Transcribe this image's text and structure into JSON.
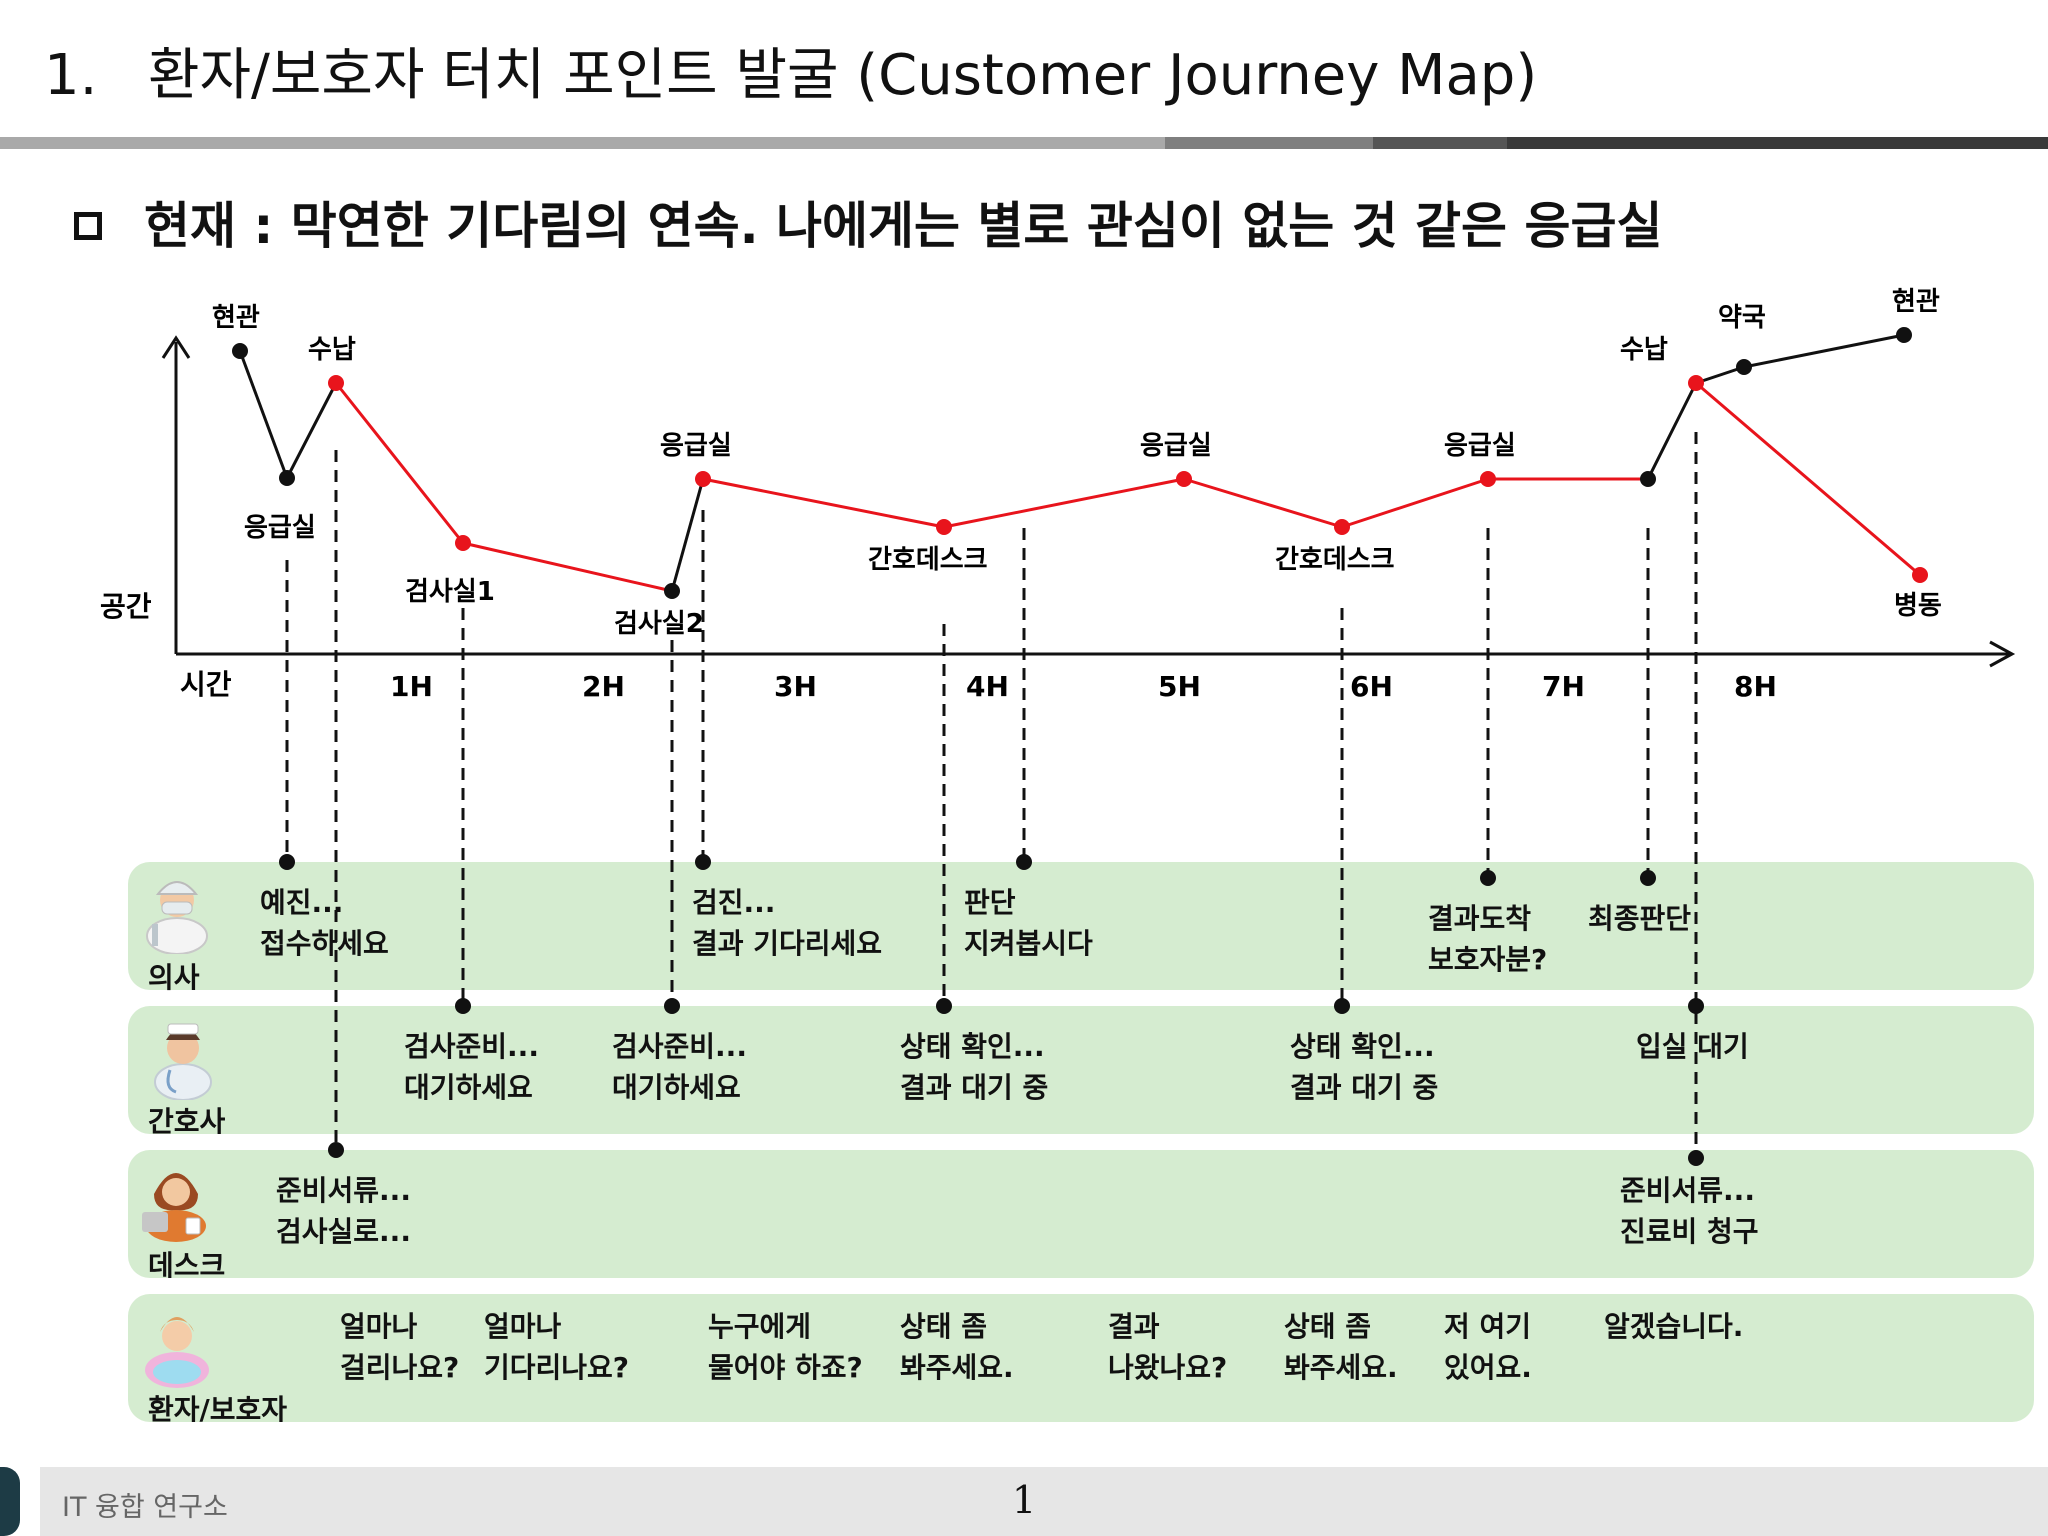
{
  "header": {
    "number": "1.",
    "title": "환자/보호자 터치 포인트 발굴 (Customer Journey Map)",
    "subtitle": "현재 : 막연한 기다림의 연속. 나에게는 별로 관심이 없는 것 같은 응급실"
  },
  "axes": {
    "y_label": "공간",
    "x_label": "시간"
  },
  "hours": [
    "1H",
    "2H",
    "3H",
    "4H",
    "5H",
    "6H",
    "7H",
    "8H"
  ],
  "journey_points": [
    {
      "id": "p0",
      "label": "현관",
      "color": "black"
    },
    {
      "id": "p1",
      "label": "응급실",
      "color": "black"
    },
    {
      "id": "p2",
      "label": "수납",
      "color": "red"
    },
    {
      "id": "p3",
      "label": "검사실1",
      "color": "red"
    },
    {
      "id": "p4",
      "label": "검사실2",
      "color": "black"
    },
    {
      "id": "p5",
      "label": "응급실",
      "color": "red"
    },
    {
      "id": "p6",
      "label": "간호데스크",
      "color": "red"
    },
    {
      "id": "p7",
      "label": "응급실",
      "color": "red"
    },
    {
      "id": "p8",
      "label": "간호데스크",
      "color": "red"
    },
    {
      "id": "p9",
      "label": "응급실",
      "color": "red"
    },
    {
      "id": "p10",
      "label": "",
      "color": "black"
    },
    {
      "id": "p11",
      "label": "수납",
      "color": "red"
    },
    {
      "id": "p12",
      "label": "약국",
      "color": "black"
    },
    {
      "id": "p13",
      "label": "현관",
      "color": "black"
    },
    {
      "id": "p14",
      "label": "병동",
      "color": "red"
    }
  ],
  "lanes": [
    {
      "id": "doctor",
      "label": "의사"
    },
    {
      "id": "nurse",
      "label": "간호사"
    },
    {
      "id": "desk",
      "label": "데스크"
    },
    {
      "id": "patient",
      "label": "환자/보호자"
    }
  ],
  "notes": {
    "doctor": [
      [
        "예진...",
        "접수하세요"
      ],
      [
        "검진...",
        "결과 기다리세요"
      ],
      [
        "판단",
        "지켜봅시다"
      ],
      [
        "결과도착",
        "보호자분?"
      ],
      [
        "최종판단"
      ]
    ],
    "nurse": [
      [
        "검사준비...",
        "대기하세요"
      ],
      [
        "검사준비...",
        "대기하세요"
      ],
      [
        "상태 확인...",
        "결과 대기 중"
      ],
      [
        "상태 확인...",
        "결과 대기 중"
      ],
      [
        "입실 대기"
      ]
    ],
    "desk": [
      [
        "준비서류...",
        "검사실로..."
      ],
      [
        "준비서류...",
        "진료비 청구"
      ]
    ],
    "patient": [
      [
        "얼마나",
        "걸리나요?"
      ],
      [
        "얼마나",
        "기다리나요?"
      ],
      [
        "누구에게",
        "물어야 하죠?"
      ],
      [
        "상태 좀",
        "봐주세요."
      ],
      [
        "결과",
        "나왔나요?"
      ],
      [
        "상태 좀",
        "봐주세요."
      ],
      [
        "저 여기",
        "있어요."
      ],
      [
        "알겠습니다."
      ]
    ]
  },
  "colors": {
    "red": "#e8141c",
    "black": "#111111",
    "lane": "#d5ecd0"
  },
  "footer": {
    "org": "IT 융합 연구소",
    "page": "1"
  }
}
